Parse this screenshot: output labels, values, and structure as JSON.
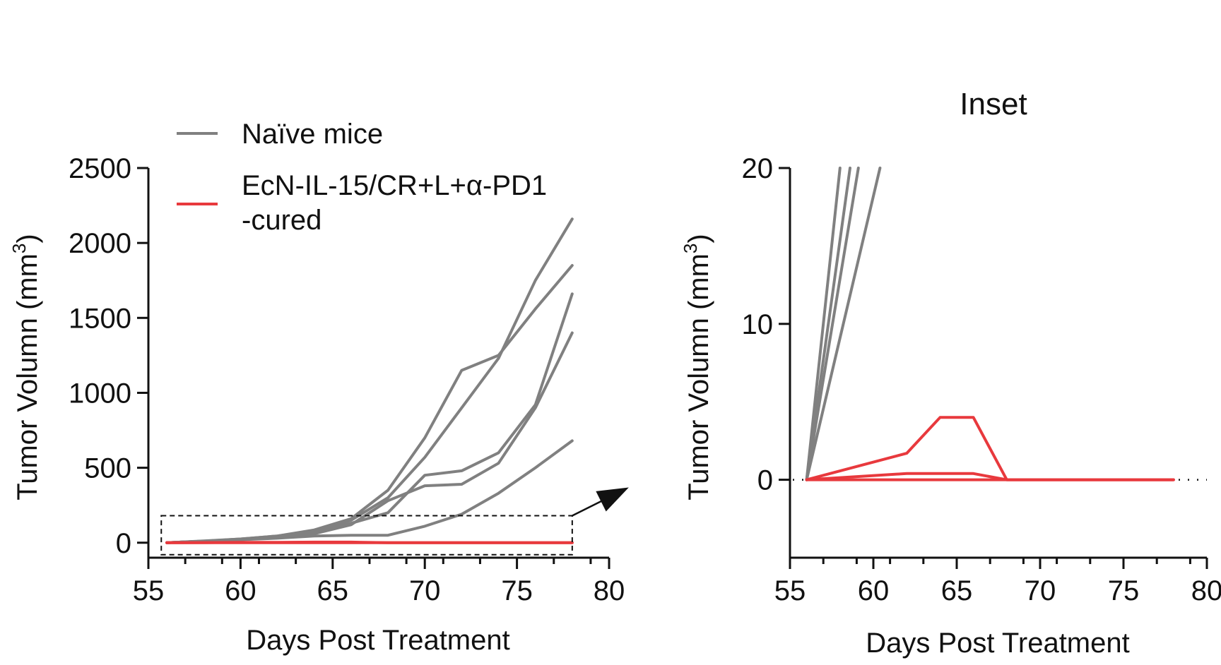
{
  "colors": {
    "naive": "#808080",
    "cured": "#e8393d",
    "axis": "#111111"
  },
  "legend": {
    "naive_label": "Naïve mice",
    "cured_label_line1": "EcN-IL-15/CR+L+α-PD1",
    "cured_label_line2": "-cured"
  },
  "chart_data": [
    {
      "id": "main",
      "type": "line",
      "title": "",
      "xlabel": "Days Post Treatment",
      "ylabel_prefix": "Tumor Volumn (mm",
      "ylabel_sup": "3",
      "ylabel_suffix": ")",
      "xlim": [
        55,
        80
      ],
      "ylim": [
        -100,
        2500
      ],
      "xticks": [
        55,
        60,
        65,
        70,
        75,
        80
      ],
      "yticks": [
        0,
        500,
        1000,
        1500,
        2000,
        2500
      ],
      "zoom_box": {
        "x": [
          55.7,
          78
        ],
        "y": [
          -80,
          180
        ]
      },
      "series": [
        {
          "name": "Naïve mice",
          "group": "naive",
          "x": [
            56,
            58,
            60,
            62,
            64,
            66,
            68,
            70,
            72,
            74,
            76,
            78
          ],
          "y": [
            0,
            12,
            25,
            45,
            85,
            160,
            350,
            700,
            1150,
            1250,
            1560,
            1850
          ]
        },
        {
          "name": "Naïve mice",
          "group": "naive",
          "x": [
            56,
            58,
            60,
            62,
            64,
            66,
            68,
            70,
            72,
            74,
            76,
            78
          ],
          "y": [
            0,
            10,
            25,
            45,
            75,
            150,
            300,
            570,
            900,
            1230,
            1750,
            2160
          ]
        },
        {
          "name": "Naïve mice",
          "group": "naive",
          "x": [
            56,
            58,
            60,
            62,
            64,
            66,
            68,
            70,
            72,
            74,
            76,
            78
          ],
          "y": [
            0,
            10,
            20,
            40,
            70,
            130,
            200,
            450,
            480,
            600,
            920,
            1660
          ]
        },
        {
          "name": "Naïve mice",
          "group": "naive",
          "x": [
            56,
            58,
            60,
            62,
            64,
            66,
            68,
            70,
            72,
            74,
            76,
            78
          ],
          "y": [
            0,
            10,
            20,
            35,
            60,
            120,
            280,
            380,
            390,
            530,
            900,
            1400
          ]
        },
        {
          "name": "Naïve mice",
          "group": "naive",
          "x": [
            56,
            58,
            60,
            62,
            64,
            66,
            68,
            70,
            72,
            74,
            76,
            78
          ],
          "y": [
            0,
            10,
            20,
            30,
            45,
            50,
            50,
            110,
            190,
            330,
            500,
            680
          ]
        },
        {
          "name": "EcN-IL-15/CR+L+α-PD1-cured",
          "group": "cured",
          "x": [
            56,
            58,
            60,
            62,
            64,
            66,
            68,
            70,
            72,
            74,
            76,
            78
          ],
          "y": [
            0,
            1,
            2,
            2,
            4,
            4,
            0,
            0,
            0,
            0,
            0,
            0
          ]
        },
        {
          "name": "EcN-IL-15/CR+L+α-PD1-cured",
          "group": "cured",
          "x": [
            56,
            58,
            60,
            62,
            64,
            66,
            68,
            70,
            72,
            74,
            76,
            78
          ],
          "y": [
            0,
            0,
            0,
            0,
            0,
            0,
            0,
            0,
            0,
            0,
            0,
            0
          ]
        }
      ]
    },
    {
      "id": "inset",
      "type": "line",
      "title": "Inset",
      "xlabel": "Days Post Treatment",
      "ylabel_prefix": "Tumor Volumn (mm",
      "ylabel_sup": "3",
      "ylabel_suffix": ")",
      "xlim": [
        55,
        80
      ],
      "ylim": [
        -5,
        20
      ],
      "xticks": [
        55,
        60,
        65,
        70,
        75,
        80
      ],
      "yticks": [
        0,
        10,
        20
      ],
      "reference_line_y": 0,
      "series": [
        {
          "name": "Naïve mice",
          "group": "naive",
          "x": [
            56,
            58.0
          ],
          "y": [
            0,
            20
          ]
        },
        {
          "name": "Naïve mice",
          "group": "naive",
          "x": [
            56,
            58.6
          ],
          "y": [
            0,
            20
          ]
        },
        {
          "name": "Naïve mice",
          "group": "naive",
          "x": [
            56,
            59.1
          ],
          "y": [
            0,
            20
          ]
        },
        {
          "name": "Naïve mice",
          "group": "naive",
          "x": [
            56,
            60.4
          ],
          "y": [
            0,
            20
          ]
        },
        {
          "name": "EcN-IL-15/CR+L+α-PD1-cured",
          "group": "cured",
          "x": [
            56,
            62,
            64,
            66,
            68,
            78
          ],
          "y": [
            0,
            1.7,
            4,
            4,
            0,
            0
          ]
        },
        {
          "name": "EcN-IL-15/CR+L+α-PD1-cured",
          "group": "cured",
          "x": [
            56,
            62,
            66,
            68,
            78
          ],
          "y": [
            0,
            0.4,
            0.4,
            0,
            0
          ]
        },
        {
          "name": "EcN-IL-15/CR+L+α-PD1-cured",
          "group": "cured",
          "x": [
            56,
            78
          ],
          "y": [
            0,
            0
          ]
        }
      ]
    }
  ]
}
